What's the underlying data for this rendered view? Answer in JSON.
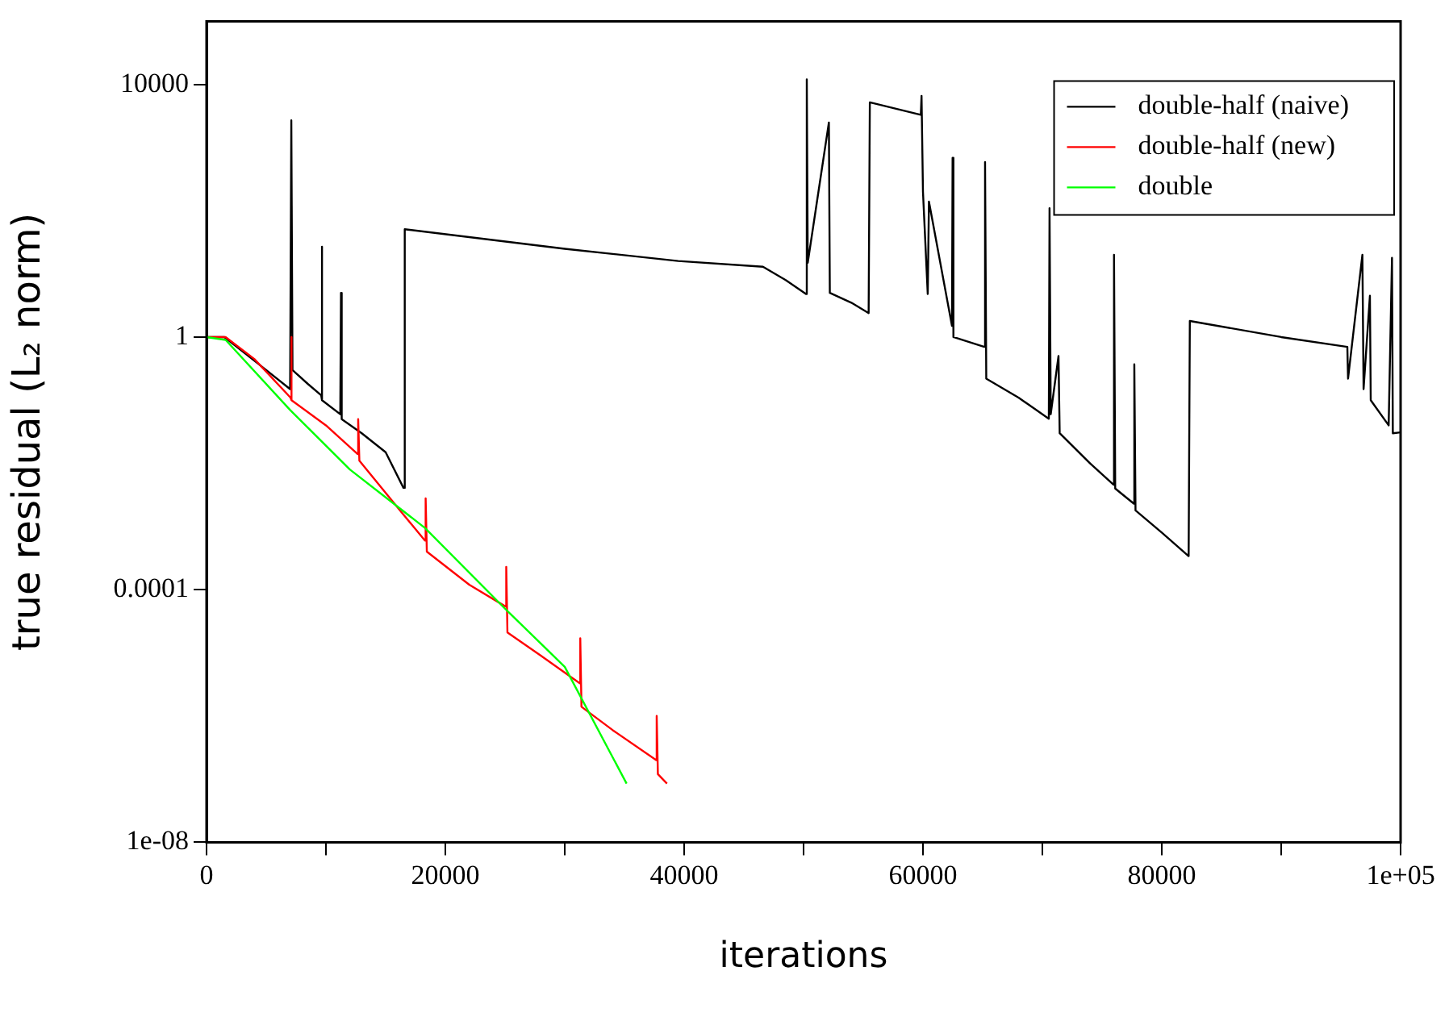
{
  "chart_data": {
    "type": "line",
    "xlabel": "iterations",
    "ylabel": "true residual (L₂ norm)",
    "log": "y",
    "grid": false,
    "legend": "top right",
    "marker": "none",
    "line_style": "solid",
    "xlim": [
      0,
      100000
    ],
    "xticks": [
      0,
      {
        "value": 10000,
        "label": null
      },
      20000,
      {
        "value": 30000,
        "label": null
      },
      40000,
      {
        "value": 50000,
        "label": null
      },
      60000,
      {
        "value": 70000,
        "label": null
      },
      80000,
      {
        "value": 90000,
        "label": null
      },
      {
        "value": 100000,
        "label": "1e+05"
      }
    ],
    "ylim": [
      1e-08,
      100000
    ],
    "yticks": [
      {
        "value": 1e-08,
        "label": "1e-08"
      },
      0.0001,
      1,
      10000
    ],
    "series": [
      {
        "name": "double-half (naive)",
        "color": "#000000",
        "x": [
          0,
          1500,
          5000,
          7000,
          7100,
          7200,
          8500,
          9600,
          9640,
          9700,
          11200,
          11260,
          11320,
          13000,
          15000,
          16490,
          16600,
          30000,
          39500,
          46600,
          48500,
          50200,
          50270,
          50350,
          52120,
          52200,
          54000,
          55450,
          55550,
          59820,
          59880,
          60000,
          60400,
          60500,
          62430,
          62480,
          62550,
          65140,
          65200,
          65300,
          68000,
          70540,
          70600,
          70700,
          71350,
          71450,
          74000,
          75950,
          76000,
          76100,
          77660,
          77700,
          77800,
          80000,
          82250,
          82350,
          90000,
          95540,
          95600,
          96800,
          96900,
          97430,
          97500,
          99000,
          99280,
          99350,
          100000
        ],
        "values": [
          1,
          1,
          0.3,
          0.15,
          2700,
          0.3,
          0.18,
          0.12,
          27,
          0.1,
          0.06,
          5,
          0.05,
          0.03,
          0.015,
          0.0041,
          51,
          25,
          16,
          13,
          8,
          4.8,
          12000,
          15,
          2500,
          5,
          3.5,
          2.4,
          5200,
          3300,
          6600,
          200,
          4.8,
          140,
          1.5,
          690,
          1,
          0.7,
          590,
          0.22,
          0.11,
          0.051,
          110,
          0.06,
          0.5,
          0.03,
          0.01,
          0.0046,
          20,
          0.004,
          0.0023,
          0.37,
          0.0018,
          0.0008,
          0.00034,
          1.8,
          1,
          0.7,
          0.22,
          20,
          0.15,
          4.5,
          0.1,
          0.04,
          18,
          0.03,
          0.031
        ]
      },
      {
        "name": "double-half (new)",
        "color": "#ff0000",
        "x": [
          0,
          1600,
          4000,
          7030,
          7080,
          7150,
          10000,
          12660,
          12700,
          12800,
          16000,
          18290,
          18350,
          18450,
          22000,
          25050,
          25100,
          25200,
          28000,
          31260,
          31300,
          31400,
          34000,
          37660,
          37700,
          37800,
          38560
        ],
        "values": [
          1,
          1,
          0.45,
          0.11,
          1,
          0.1,
          0.04,
          0.014,
          0.05,
          0.011,
          0.002,
          0.0006,
          0.0028,
          0.0004,
          0.00012,
          5.4e-05,
          0.00023,
          2.1e-05,
          9e-06,
          3.3e-06,
          1.7e-05,
          1.4e-06,
          6e-07,
          2e-07,
          1e-06,
          1.2e-07,
          8.5e-08
        ]
      },
      {
        "name": "double",
        "color": "#00ff00",
        "x": [
          0,
          1600,
          7000,
          12000,
          18290,
          25000,
          30000,
          35180
        ],
        "values": [
          1,
          0.9,
          0.07,
          0.008,
          0.00095,
          5e-05,
          6e-06,
          8.5e-08
        ]
      }
    ]
  }
}
